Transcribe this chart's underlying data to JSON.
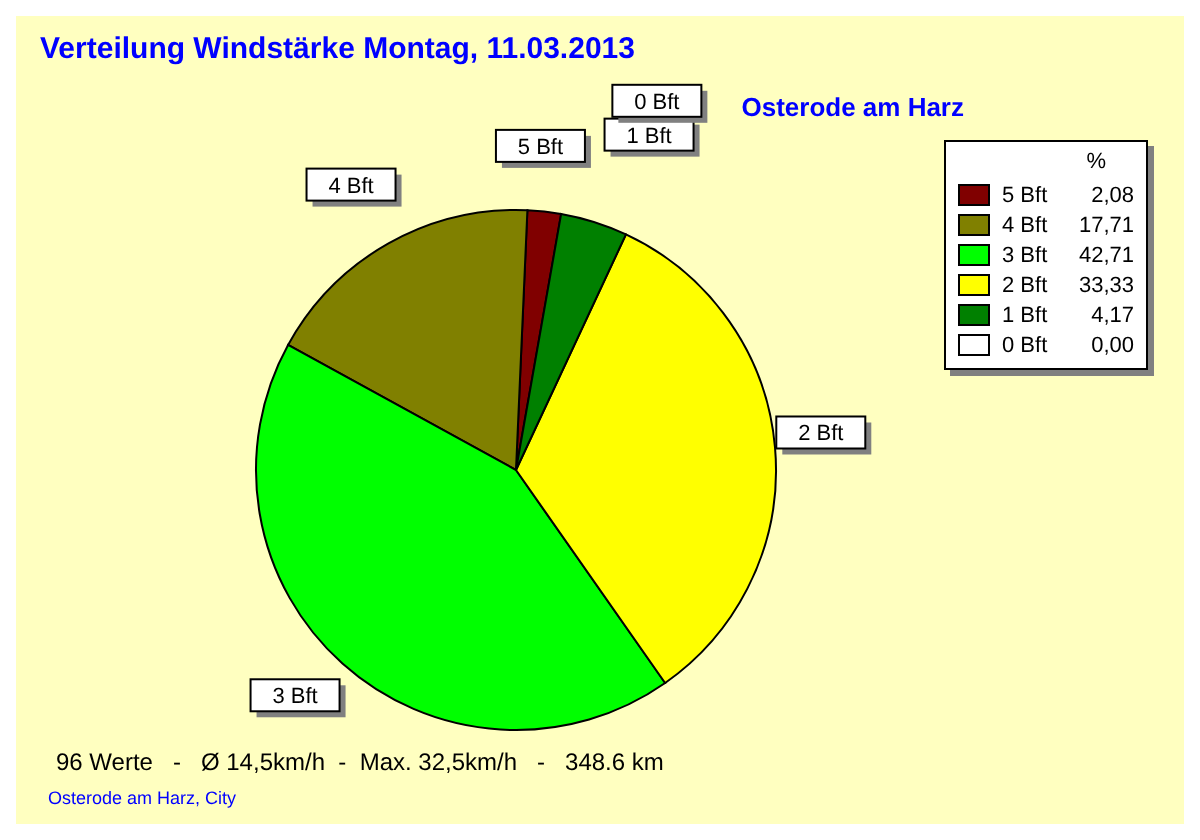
{
  "chart_data": {
    "type": "pie",
    "title": "Verteilung Windstärke  Montag, 11.03.2013",
    "subtitle": "Osterode am Harz",
    "legend_title": "%",
    "categories": [
      "5 Bft",
      "4 Bft",
      "3 Bft",
      "2 Bft",
      "1 Bft",
      "0 Bft"
    ],
    "values": [
      2.08,
      17.71,
      42.71,
      33.33,
      4.17,
      0.0
    ],
    "value_labels": [
      "2,08",
      "17,71",
      "42,71",
      "33,33",
      "4,17",
      "0,00"
    ],
    "colors": [
      "#800000",
      "#808000",
      "#00ff00",
      "#ffff00",
      "#008000",
      "#ffffff"
    ],
    "legend": "top right",
    "annotations": [
      "96 Werte   -   Ø 14,5km/h  -  Max. 32,5km/h   -   348.6 km",
      "Osterode am Harz, City"
    ]
  }
}
